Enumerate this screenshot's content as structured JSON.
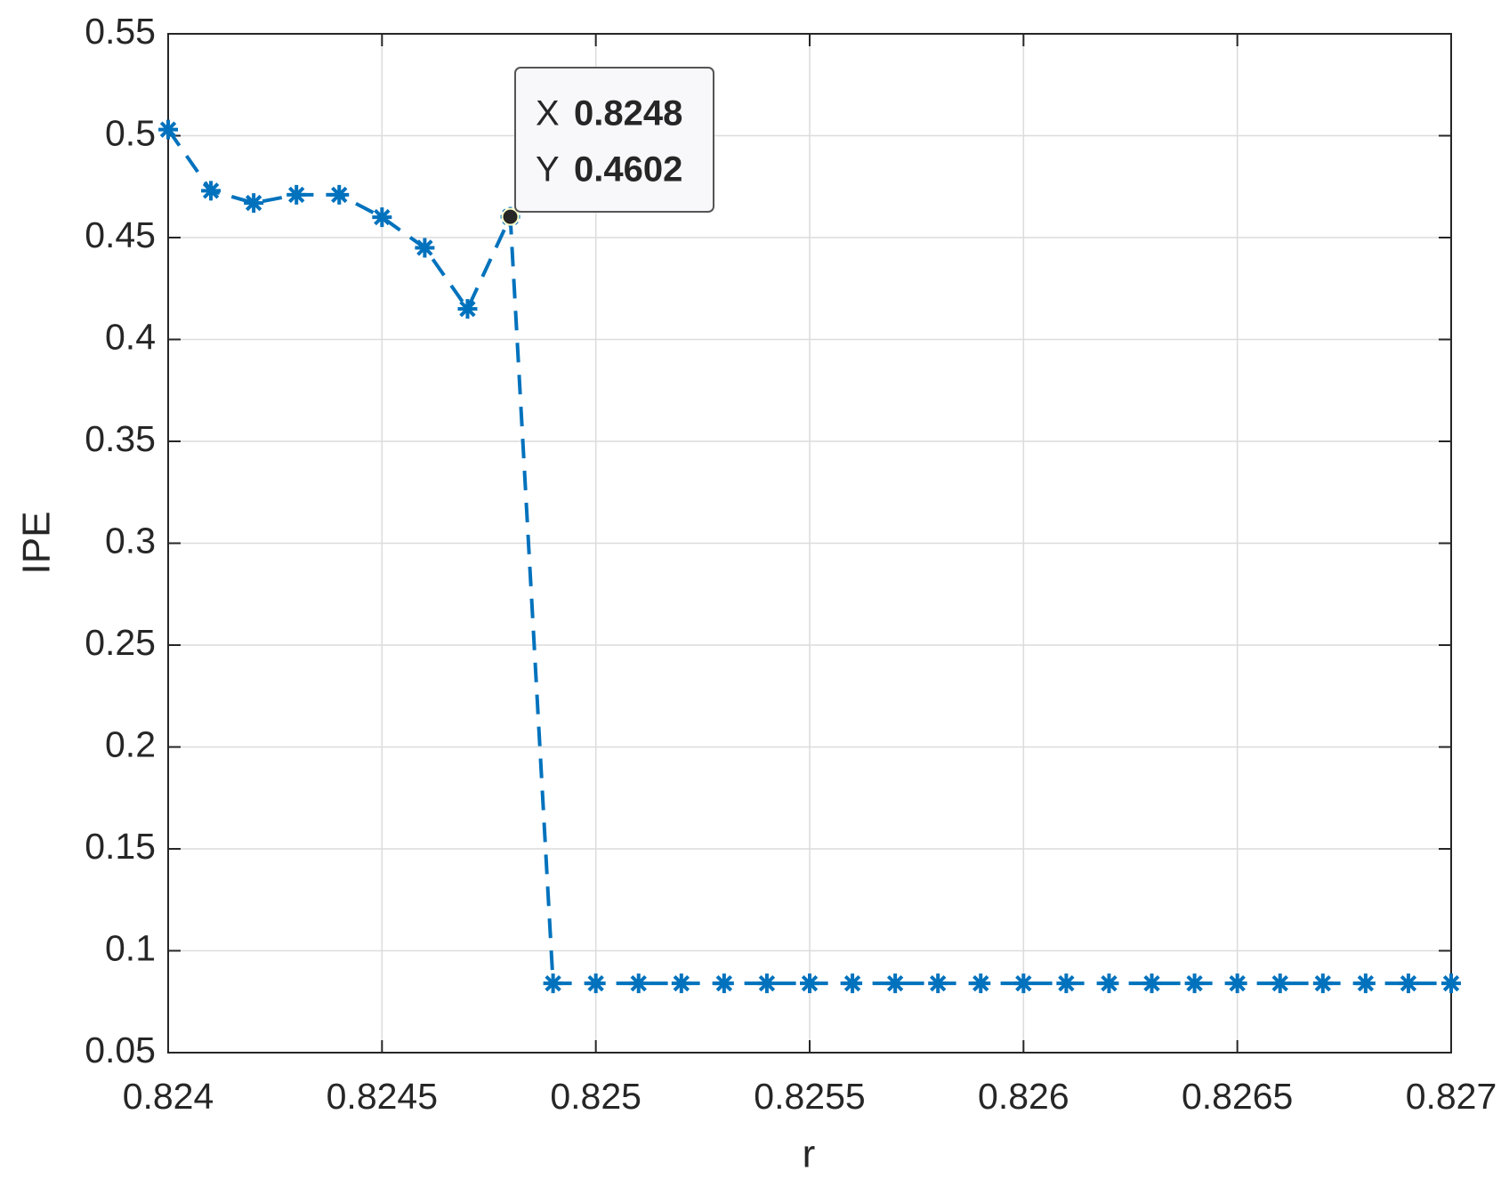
{
  "chart_data": {
    "type": "line",
    "xlabel": "r",
    "ylabel": "IPE",
    "x": [
      0.824,
      0.8241,
      0.8242,
      0.8243,
      0.8244,
      0.8245,
      0.8246,
      0.8247,
      0.8248,
      0.8249,
      0.825,
      0.8251,
      0.8252,
      0.8253,
      0.8254,
      0.8255,
      0.8256,
      0.8257,
      0.8258,
      0.8259,
      0.826,
      0.8261,
      0.8262,
      0.8263,
      0.8264,
      0.8265,
      0.8266,
      0.8267,
      0.8268,
      0.8269,
      0.827
    ],
    "series": [
      {
        "color": "#0072bd",
        "line_style": "dashed",
        "marker": "asterisk",
        "values": [
          0.503,
          0.473,
          0.467,
          0.471,
          0.471,
          0.46,
          0.445,
          0.415,
          0.4602,
          0.084,
          0.084,
          0.084,
          0.084,
          0.084,
          0.084,
          0.084,
          0.084,
          0.084,
          0.084,
          0.084,
          0.084,
          0.084,
          0.084,
          0.084,
          0.084,
          0.084,
          0.084,
          0.084,
          0.084,
          0.084,
          0.084
        ]
      }
    ],
    "xlim": [
      0.824,
      0.827
    ],
    "xticks": [
      0.824,
      0.8245,
      0.825,
      0.8255,
      0.826,
      0.8265,
      0.827
    ],
    "ylim": [
      0.05,
      0.55
    ],
    "yticks": [
      0.05,
      0.1,
      0.15,
      0.2,
      0.25,
      0.3,
      0.35,
      0.4,
      0.45,
      0.5,
      0.55
    ],
    "grid": true,
    "datatip": {
      "x_label": "X",
      "x": 0.8248,
      "y_label": "Y",
      "y": 0.4602
    }
  }
}
